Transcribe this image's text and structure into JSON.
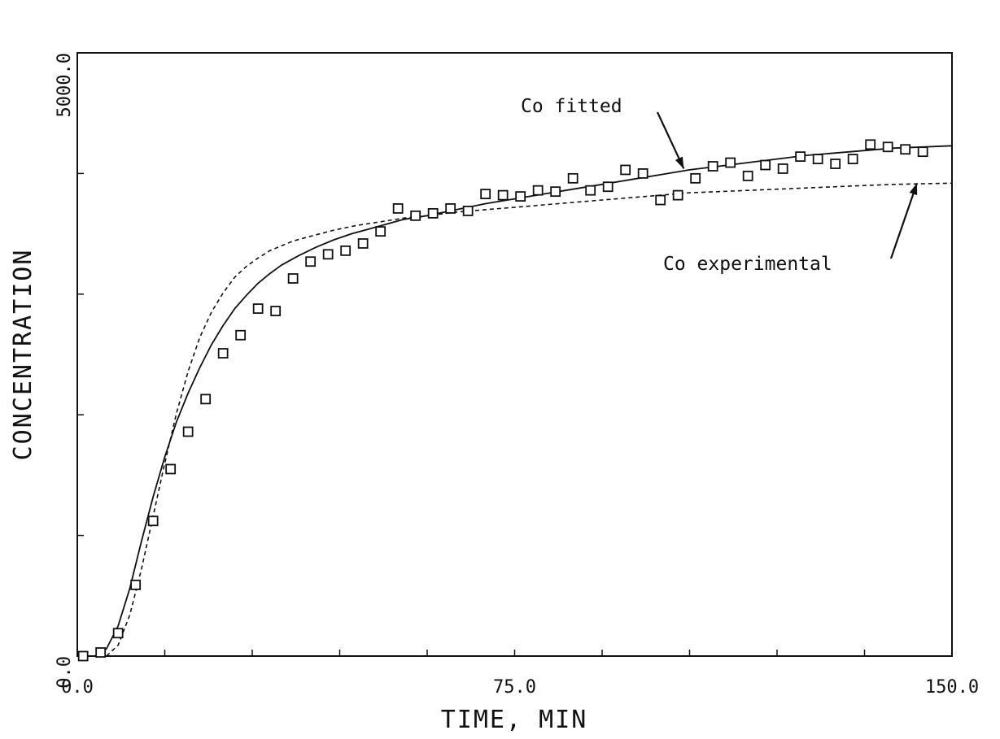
{
  "chart_data": {
    "type": "scatter",
    "title": "",
    "xlabel": "TIME, MIN",
    "ylabel": "CONCENTRATION",
    "xlim": [
      0,
      150
    ],
    "ylim": [
      0,
      5000
    ],
    "x_tick_labels": [
      "0.0",
      "75.0",
      "150.0"
    ],
    "y_tick_labels": [
      "0.0",
      "5000.0"
    ],
    "x_minor_ticks": [
      0,
      15,
      30,
      45,
      60,
      75,
      90,
      105,
      120,
      135,
      150
    ],
    "y_minor_ticks": [
      0,
      1000,
      2000,
      3000,
      4000,
      5000
    ],
    "grid": false,
    "annotations": [
      {
        "text": "Co fitted",
        "points_to": {
          "x": 104,
          "y": 4040
        }
      },
      {
        "text": "Co experimental",
        "points_to": {
          "x": 144,
          "y": 3920
        }
      }
    ],
    "series": [
      {
        "style": "markers",
        "marker": "square",
        "x": [
          1,
          4,
          7,
          10,
          13,
          16,
          19,
          22,
          25,
          28,
          31,
          34,
          37,
          40,
          43,
          46,
          49,
          52,
          55,
          58,
          61,
          64,
          67,
          70,
          73,
          76,
          79,
          82,
          85,
          88,
          91,
          94,
          97,
          100,
          103,
          106,
          109,
          112,
          115,
          118,
          121,
          124,
          127,
          130,
          133,
          136,
          139,
          142,
          145
        ],
        "y": [
          0,
          30,
          190,
          590,
          1120,
          1550,
          1860,
          2130,
          2510,
          2660,
          2880,
          2860,
          3130,
          3270,
          3330,
          3360,
          3420,
          3520,
          3710,
          3650,
          3670,
          3710,
          3690,
          3830,
          3820,
          3810,
          3860,
          3850,
          3960,
          3860,
          3890,
          4030,
          4000,
          3780,
          3820,
          3960,
          4060,
          4090,
          3980,
          4070,
          4040,
          4140,
          4120,
          4080,
          4120,
          4240,
          4220,
          4200,
          4180
        ]
      },
      {
        "style": "solid-line",
        "x": [
          0,
          3,
          5,
          7,
          9,
          11,
          13,
          15,
          17,
          19,
          21,
          23,
          25,
          27,
          29,
          31,
          33,
          35,
          38,
          41,
          44,
          47,
          50,
          53,
          56,
          60,
          65,
          70,
          75,
          80,
          85,
          90,
          95,
          100,
          105,
          110,
          115,
          120,
          125,
          130,
          135,
          140,
          145,
          150
        ],
        "y": [
          0,
          0,
          60,
          250,
          560,
          950,
          1320,
          1650,
          1940,
          2180,
          2390,
          2580,
          2740,
          2880,
          2990,
          3090,
          3170,
          3240,
          3320,
          3390,
          3450,
          3500,
          3540,
          3580,
          3620,
          3650,
          3700,
          3750,
          3790,
          3830,
          3870,
          3910,
          3950,
          3990,
          4030,
          4060,
          4090,
          4120,
          4150,
          4170,
          4190,
          4210,
          4220,
          4230
        ]
      },
      {
        "style": "dashed-line",
        "x": [
          0,
          5,
          7,
          9,
          11,
          13,
          15,
          17,
          19,
          21,
          23,
          25,
          27,
          29,
          31,
          33,
          35,
          37,
          40,
          44,
          48,
          52,
          56,
          60,
          65,
          70,
          75,
          80,
          85,
          90,
          95,
          100,
          105,
          110,
          115,
          120,
          125,
          130,
          135,
          140,
          145,
          150
        ],
        "y": [
          0,
          0,
          90,
          340,
          720,
          1160,
          1600,
          2010,
          2360,
          2640,
          2850,
          3010,
          3140,
          3230,
          3300,
          3360,
          3400,
          3440,
          3480,
          3530,
          3570,
          3600,
          3630,
          3650,
          3680,
          3700,
          3720,
          3740,
          3760,
          3780,
          3800,
          3820,
          3840,
          3850,
          3860,
          3870,
          3880,
          3890,
          3900,
          3910,
          3915,
          3920
        ]
      }
    ]
  }
}
